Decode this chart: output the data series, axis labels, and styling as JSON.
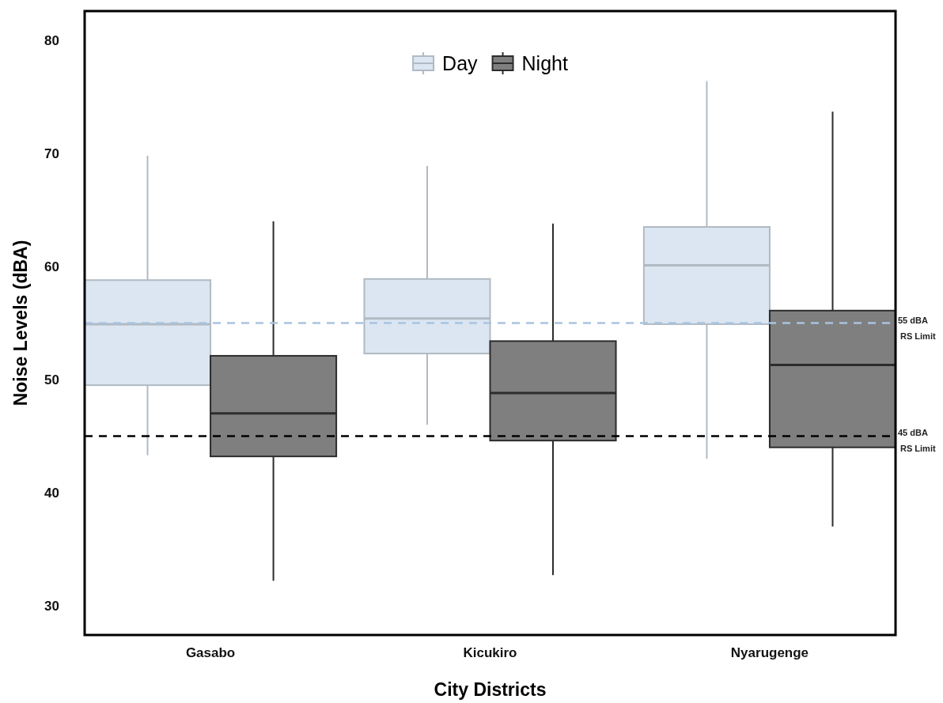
{
  "chart_data": {
    "type": "box",
    "xlabel": "City Districts",
    "ylabel": "Noise Levels (dBA)",
    "categories": [
      "Gasabo",
      "Kicukiro",
      "Nyarugenge"
    ],
    "ylim": [
      27.4,
      82.6
    ],
    "yticks": [
      30,
      40,
      50,
      60,
      70,
      80
    ],
    "grid": false,
    "legend": "top",
    "series": [
      {
        "name": "Day",
        "color": "#dbe6f2",
        "boxes": [
          {
            "low": 43.3,
            "q1": 49.5,
            "median": 54.9,
            "q3": 58.8,
            "high": 69.8
          },
          {
            "low": 46,
            "q1": 52.3,
            "median": 55.4,
            "q3": 58.9,
            "high": 68.9
          },
          {
            "low": 43,
            "q1": 54.9,
            "median": 60.1,
            "q3": 63.5,
            "high": 76.4
          }
        ]
      },
      {
        "name": "Night",
        "color": "#7f7f7f",
        "boxes": [
          {
            "low": 32.2,
            "q1": 43.2,
            "median": 47,
            "q3": 52.1,
            "high": 64
          },
          {
            "low": 32.7,
            "q1": 44.6,
            "median": 48.8,
            "q3": 53.4,
            "high": 63.8
          },
          {
            "low": 37,
            "q1": 44,
            "median": 51.3,
            "q3": 56.1,
            "high": 73.7
          }
        ]
      }
    ],
    "ref_lines": [
      {
        "axis": "y",
        "value": 55,
        "label": "55 dBA\nRS Limit",
        "color": "#a9c4e0",
        "line_style": "dashed"
      },
      {
        "axis": "y",
        "value": 45,
        "label": "45 dBA\nRS Limit",
        "color": "#000000",
        "line_style": "dashed"
      }
    ]
  }
}
